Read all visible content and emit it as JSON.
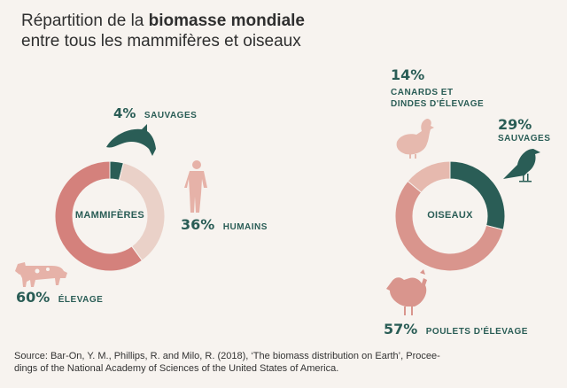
{
  "title": {
    "prefix": "Répartition de la ",
    "bold": "biomasse mondiale",
    "line2": "entre tous les mammifères et oiseaux"
  },
  "colors": {
    "dark_green": "#2a5d56",
    "light_pink": "#ead1c8",
    "mid_pink": "#d9958d",
    "rose": "#d4817c",
    "icon_pink": "#e6b2a8",
    "background": "#f7f3ef"
  },
  "chart_data": [
    {
      "type": "pie",
      "center_label": "MAMMIFÈRES",
      "slices": [
        {
          "label": "SAUVAGES",
          "value": 4,
          "display": "4%",
          "color": "#2a5d56"
        },
        {
          "label": "HUMAINS",
          "value": 36,
          "display": "36%",
          "color": "#ead1c8"
        },
        {
          "label": "ÉLEVAGE",
          "value": 60,
          "display": "60%",
          "color": "#d4817c"
        }
      ]
    },
    {
      "type": "pie",
      "center_label": "OISEAUX",
      "slices": [
        {
          "label": "SAUVAGES",
          "value": 29,
          "display": "29%",
          "color": "#2a5d56"
        },
        {
          "label": "POULETS D'ÉLEVAGE",
          "value": 57,
          "display": "57%",
          "color": "#d9958d"
        },
        {
          "label": "CANARDS ET DINDES D'ÉLEVAGE",
          "value": 14,
          "display": "14%",
          "color": "#e6b9ae"
        }
      ]
    }
  ],
  "labels": {
    "m_wild_pct": "4%",
    "m_wild_txt": "SAUVAGES",
    "m_human_pct": "36%",
    "m_human_txt": "HUMAINS",
    "m_livestock_pct": "60%",
    "m_livestock_txt": "ÉLEVAGE",
    "b_duck_pct": "14%",
    "b_duck_txt1": "CANARDS ET",
    "b_duck_txt2": "DINDES D'ÉLEVAGE",
    "b_wild_pct": "29%",
    "b_wild_txt": "SAUVAGES",
    "b_chicken_pct": "57%",
    "b_chicken_txt": "POULETS D'ÉLEVAGE"
  },
  "icons": [
    "dolphin-icon",
    "human-icon",
    "cow-icon",
    "duck-icon",
    "bird-icon",
    "chicken-icon"
  ],
  "source": {
    "line1": "Source: Bar-On, Y. M., Phillips, R. and Milo, R. (2018), ‘The biomass distribution on Earth’, Procee-",
    "line2": "dings of the National Academy of Sciences of the United States of America."
  }
}
